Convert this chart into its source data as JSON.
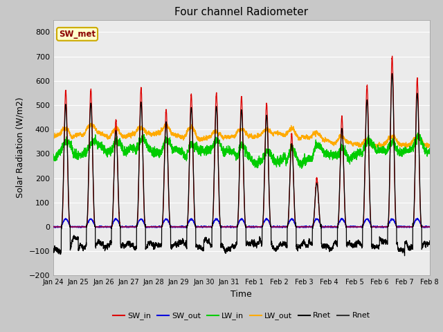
{
  "title": "Four channel Radiometer",
  "xlabel": "Time",
  "ylabel": "Solar Radiation (W/m2)",
  "ylim": [
    -200,
    850
  ],
  "yticks": [
    -200,
    -100,
    0,
    100,
    200,
    300,
    400,
    500,
    600,
    700,
    800
  ],
  "annotation_text": "SW_met",
  "axes_bg_color": "#ebebeb",
  "fig_bg_color": "#c8c8c8",
  "legend_entries": [
    "SW_in",
    "SW_out",
    "LW_in",
    "LW_out",
    "Rnet",
    "Rnet"
  ],
  "legend_colors": [
    "#dd0000",
    "#0000dd",
    "#00cc00",
    "#ffaa00",
    "#000000",
    "#333333"
  ],
  "xtick_labels": [
    "Jan 24",
    "Jan 25",
    "Jan 26",
    "Jan 27",
    "Jan 28",
    "Jan 29",
    "Jan 30",
    "Jan 31",
    "Feb 1",
    "Feb 2",
    "Feb 3",
    "Feb 4",
    "Feb 5",
    "Feb 6",
    "Feb 7",
    "Feb 8"
  ],
  "num_days": 15,
  "seed": 42,
  "sw_in_peaks": [
    560,
    565,
    440,
    570,
    480,
    545,
    550,
    535,
    510,
    380,
    200,
    450,
    580,
    700,
    610
  ]
}
